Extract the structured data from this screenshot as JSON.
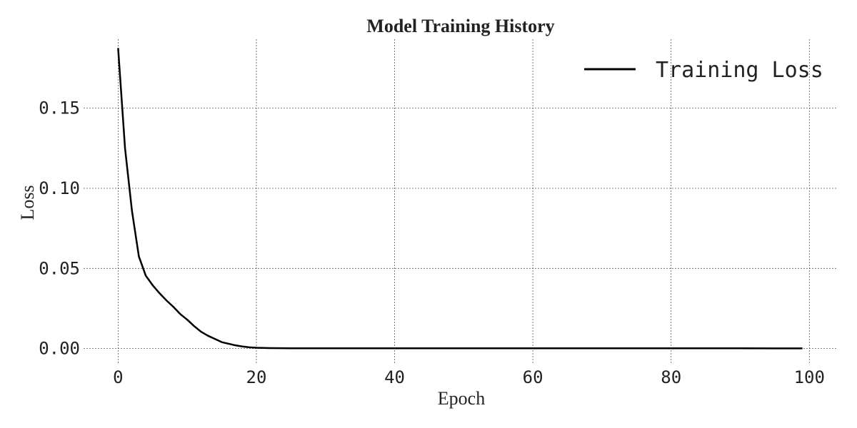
{
  "chart_data": {
    "type": "line",
    "title": "Model Training History",
    "xlabel": "Epoch",
    "ylabel": "Loss",
    "xlim": [
      -5,
      104
    ],
    "ylim": [
      -0.0095,
      0.193
    ],
    "xticks": [
      0,
      20,
      40,
      60,
      80,
      100
    ],
    "yticks": [
      0.0,
      0.05,
      0.1,
      0.15
    ],
    "xtick_labels": [
      "0",
      "20",
      "40",
      "60",
      "80",
      "100"
    ],
    "ytick_labels": [
      "0.00",
      "0.05",
      "0.10",
      "0.15"
    ],
    "grid": true,
    "legend_position": "top-right",
    "series": [
      {
        "name": "Training Loss",
        "color": "#000000",
        "x": [
          0,
          1,
          2,
          3,
          4,
          5,
          6,
          7,
          8,
          9,
          10,
          11,
          12,
          13,
          14,
          15,
          16,
          17,
          18,
          19,
          20,
          22,
          25,
          30,
          35,
          40,
          45,
          50,
          55,
          60,
          65,
          70,
          75,
          80,
          85,
          90,
          95,
          99
        ],
        "y": [
          0.1875,
          0.125,
          0.086,
          0.0575,
          0.0455,
          0.0395,
          0.0345,
          0.03,
          0.026,
          0.0215,
          0.018,
          0.014,
          0.0105,
          0.008,
          0.006,
          0.004,
          0.003,
          0.002,
          0.0013,
          0.0008,
          0.0005,
          0.0003,
          0.0002,
          0.0002,
          0.0002,
          0.0002,
          0.0002,
          0.0002,
          0.0002,
          0.0002,
          0.0002,
          0.0002,
          0.0002,
          0.0002,
          0.0002,
          0.0002,
          0.0001,
          0.0001
        ]
      }
    ]
  }
}
